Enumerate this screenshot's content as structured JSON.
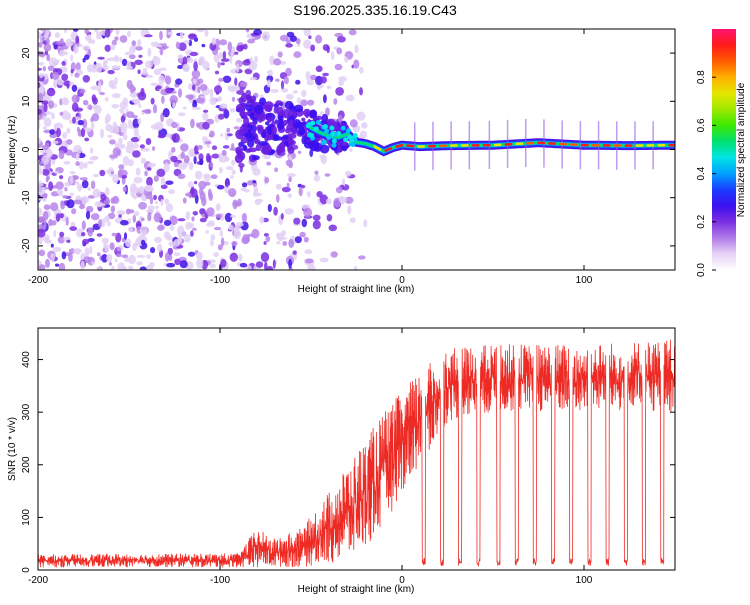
{
  "title": "S196.2025.335.16.19.C43",
  "chart_data": [
    {
      "type": "heatmap",
      "xlabel": "Height of straight line (km)",
      "ylabel": "Frequency (Hz)",
      "xlim": [
        -200,
        150
      ],
      "ylim": [
        -25,
        25
      ],
      "xticks": [
        -200,
        -100,
        0,
        100
      ],
      "yticks": [
        -20,
        -10,
        0,
        10,
        20
      ],
      "colorbar": {
        "label": "Normalized spectral amplitude",
        "range": [
          0,
          1
        ],
        "ticks": [
          "0.0",
          "0.2",
          "0.4",
          "0.6",
          "0.8"
        ],
        "colors": [
          "#ffffff",
          "#e6d2f6",
          "#b27be9",
          "#7b2fe0",
          "#3b10ef",
          "#1a3cff",
          "#00a0ff",
          "#00e5e5",
          "#00e070",
          "#3ce800",
          "#9fe800",
          "#e6e600",
          "#ffb000",
          "#ff5a00",
          "#ff1a1a",
          "#ff1470"
        ]
      },
      "ridge": [
        {
          "x": -50,
          "f": 4.5
        },
        {
          "x": -45,
          "f": 3.5
        },
        {
          "x": -40,
          "f": 2.8
        },
        {
          "x": -35,
          "f": 2.5
        },
        {
          "x": -30,
          "f": 3.2
        },
        {
          "x": -25,
          "f": 1.5
        },
        {
          "x": -20,
          "f": 1.2
        },
        {
          "x": -15,
          "f": 0.6
        },
        {
          "x": -10,
          "f": -0.4
        },
        {
          "x": -5,
          "f": 0.4
        },
        {
          "x": 0,
          "f": 0.9
        },
        {
          "x": 10,
          "f": 0.6
        },
        {
          "x": 25,
          "f": 0.8
        },
        {
          "x": 50,
          "f": 0.9
        },
        {
          "x": 75,
          "f": 1.4
        },
        {
          "x": 100,
          "f": 0.9
        },
        {
          "x": 125,
          "f": 0.8
        },
        {
          "x": 150,
          "f": 0.9
        }
      ],
      "noise_region": [
        -200,
        -50
      ]
    },
    {
      "type": "line",
      "xlabel": "Height of straight line (km)",
      "ylabel": "SNR (10 * v/v)",
      "xlim": [
        -200,
        150
      ],
      "ylim": [
        0,
        460
      ],
      "xticks": [
        -200,
        -100,
        0,
        100
      ],
      "yticks": [
        0,
        100,
        200,
        300,
        400
      ],
      "color": "#ee2a24",
      "envelope": [
        {
          "x": -200,
          "low": 5,
          "high": 30
        },
        {
          "x": -90,
          "low": 5,
          "high": 32
        },
        {
          "x": -80,
          "low": 5,
          "high": 80
        },
        {
          "x": -70,
          "low": 5,
          "high": 60
        },
        {
          "x": -55,
          "low": 5,
          "high": 80
        },
        {
          "x": -40,
          "low": 10,
          "high": 150
        },
        {
          "x": -30,
          "low": 20,
          "high": 200
        },
        {
          "x": -20,
          "low": 40,
          "high": 250
        },
        {
          "x": -10,
          "low": 80,
          "high": 300
        },
        {
          "x": 0,
          "low": 150,
          "high": 340
        },
        {
          "x": 10,
          "low": 200,
          "high": 380
        },
        {
          "x": 25,
          "low": 280,
          "high": 420
        },
        {
          "x": 50,
          "low": 300,
          "high": 430
        },
        {
          "x": 100,
          "low": 300,
          "high": 430
        },
        {
          "x": 150,
          "low": 300,
          "high": 440
        }
      ],
      "dip_positions": [
        12,
        22,
        32,
        42,
        53,
        63,
        73,
        83,
        93,
        103,
        113,
        123,
        133,
        143
      ],
      "dip_value": 8
    }
  ]
}
